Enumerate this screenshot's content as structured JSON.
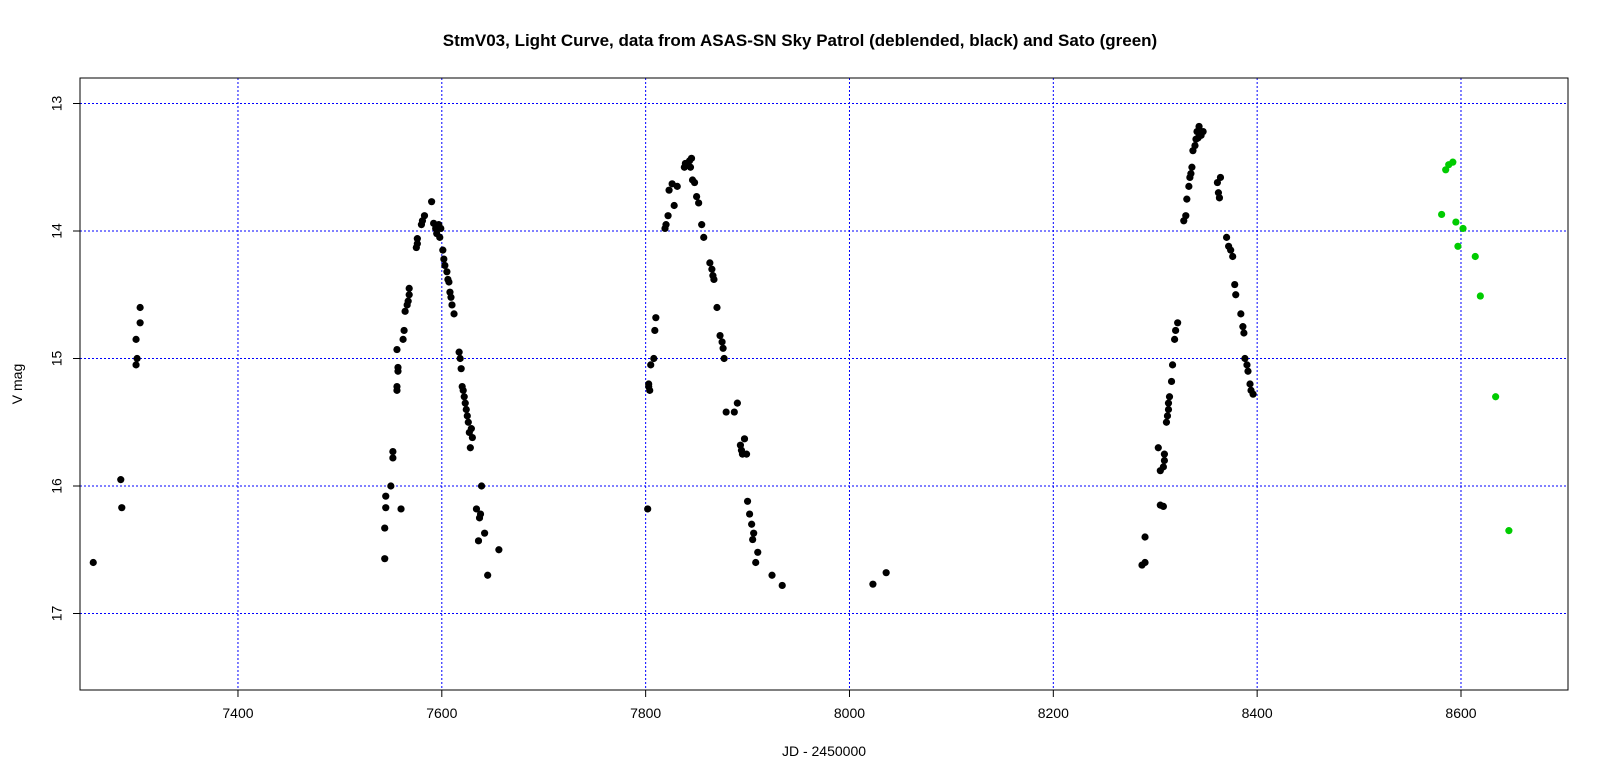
{
  "chart_data": {
    "type": "scatter",
    "title": "StmV03, Light Curve, data from ASAS-SN Sky Patrol (deblended, black) and Sato (green)",
    "xlabel": "JD - 2450000",
    "ylabel": "V mag",
    "xlim": [
      7245,
      8705
    ],
    "ylim": [
      17.6,
      12.8
    ],
    "y_inverted": true,
    "x_ticks": [
      7400,
      7600,
      7800,
      8000,
      8200,
      8400,
      8600
    ],
    "y_ticks": [
      13,
      14,
      15,
      16,
      17
    ],
    "grid": true,
    "series": [
      {
        "colorname": "black",
        "color": "#000000",
        "points": [
          [
            7258,
            16.6
          ],
          [
            7285,
            15.95
          ],
          [
            7286,
            16.17
          ],
          [
            7300,
            15.05
          ],
          [
            7301,
            15.0
          ],
          [
            7300,
            14.85
          ],
          [
            7304,
            14.72
          ],
          [
            7304,
            14.6
          ],
          [
            7544,
            16.57
          ],
          [
            7544,
            16.33
          ],
          [
            7545,
            16.17
          ],
          [
            7545,
            16.08
          ],
          [
            7550,
            16.0
          ],
          [
            7552,
            15.78
          ],
          [
            7552,
            15.73
          ],
          [
            7556,
            15.25
          ],
          [
            7556,
            15.22
          ],
          [
            7557,
            15.1
          ],
          [
            7557,
            15.07
          ],
          [
            7556,
            14.93
          ],
          [
            7560,
            16.18
          ],
          [
            7562,
            14.85
          ],
          [
            7563,
            14.78
          ],
          [
            7564,
            14.63
          ],
          [
            7566,
            14.58
          ],
          [
            7567,
            14.55
          ],
          [
            7568,
            14.5
          ],
          [
            7568,
            14.45
          ],
          [
            7575,
            14.13
          ],
          [
            7576,
            14.1
          ],
          [
            7576,
            14.06
          ],
          [
            7580,
            13.95
          ],
          [
            7581,
            13.92
          ],
          [
            7583,
            13.88
          ],
          [
            7590,
            13.77
          ],
          [
            7592,
            13.94
          ],
          [
            7594,
            13.98
          ],
          [
            7595,
            14.02
          ],
          [
            7597,
            13.95
          ],
          [
            7598,
            14.05
          ],
          [
            7599,
            13.98
          ],
          [
            7601,
            14.15
          ],
          [
            7602,
            14.22
          ],
          [
            7603,
            14.27
          ],
          [
            7605,
            14.32
          ],
          [
            7606,
            14.38
          ],
          [
            7607,
            14.4
          ],
          [
            7608,
            14.48
          ],
          [
            7609,
            14.52
          ],
          [
            7610,
            14.58
          ],
          [
            7612,
            14.65
          ],
          [
            7617,
            14.95
          ],
          [
            7618,
            15.0
          ],
          [
            7619,
            15.08
          ],
          [
            7620,
            15.22
          ],
          [
            7621,
            15.25
          ],
          [
            7622,
            15.3
          ],
          [
            7623,
            15.35
          ],
          [
            7624,
            15.4
          ],
          [
            7625,
            15.45
          ],
          [
            7626,
            15.5
          ],
          [
            7627,
            15.58
          ],
          [
            7628,
            15.7
          ],
          [
            7629,
            15.55
          ],
          [
            7630,
            15.62
          ],
          [
            7634,
            16.18
          ],
          [
            7636,
            16.43
          ],
          [
            7637,
            16.25
          ],
          [
            7638,
            16.22
          ],
          [
            7639,
            16.0
          ],
          [
            7642,
            16.37
          ],
          [
            7645,
            16.7
          ],
          [
            7656,
            16.5
          ]
        ]
      },
      {
        "colorname": "black2",
        "color": "#000000",
        "points": [
          [
            7802,
            16.18
          ],
          [
            7803,
            15.2
          ],
          [
            7803,
            15.22
          ],
          [
            7804,
            15.25
          ],
          [
            7805,
            15.05
          ],
          [
            7808,
            15.0
          ],
          [
            7809,
            14.78
          ],
          [
            7810,
            14.68
          ],
          [
            7819,
            13.98
          ],
          [
            7820,
            13.95
          ],
          [
            7822,
            13.88
          ],
          [
            7823,
            13.68
          ],
          [
            7826,
            13.63
          ],
          [
            7828,
            13.8
          ],
          [
            7831,
            13.65
          ],
          [
            7838,
            13.5
          ],
          [
            7839,
            13.47
          ],
          [
            7843,
            13.45
          ],
          [
            7844,
            13.5
          ],
          [
            7845,
            13.43
          ],
          [
            7846,
            13.6
          ],
          [
            7848,
            13.62
          ],
          [
            7850,
            13.73
          ],
          [
            7852,
            13.78
          ],
          [
            7855,
            13.95
          ],
          [
            7857,
            14.05
          ],
          [
            7863,
            14.25
          ],
          [
            7865,
            14.3
          ],
          [
            7866,
            14.35
          ],
          [
            7867,
            14.38
          ],
          [
            7870,
            14.6
          ],
          [
            7873,
            14.82
          ],
          [
            7875,
            14.87
          ],
          [
            7876,
            14.92
          ],
          [
            7877,
            15.0
          ],
          [
            7879,
            15.42
          ],
          [
            7887,
            15.42
          ],
          [
            7890,
            15.35
          ],
          [
            7893,
            15.68
          ],
          [
            7894,
            15.72
          ],
          [
            7895,
            15.75
          ],
          [
            7897,
            15.63
          ],
          [
            7899,
            15.75
          ],
          [
            7900,
            16.12
          ],
          [
            7902,
            16.22
          ],
          [
            7904,
            16.3
          ],
          [
            7905,
            16.42
          ],
          [
            7906,
            16.37
          ],
          [
            7908,
            16.6
          ],
          [
            7910,
            16.52
          ],
          [
            7924,
            16.7
          ],
          [
            7934,
            16.78
          ],
          [
            8023,
            16.77
          ],
          [
            8036,
            16.68
          ]
        ]
      },
      {
        "colorname": "black3",
        "color": "#000000",
        "points": [
          [
            8287,
            16.62
          ],
          [
            8290,
            16.6
          ],
          [
            8290,
            16.4
          ],
          [
            8303,
            15.7
          ],
          [
            8305,
            15.88
          ],
          [
            8305,
            16.15
          ],
          [
            8308,
            16.16
          ],
          [
            8308,
            15.85
          ],
          [
            8309,
            15.8
          ],
          [
            8309,
            15.75
          ],
          [
            8311,
            15.5
          ],
          [
            8312,
            15.45
          ],
          [
            8313,
            15.4
          ],
          [
            8313,
            15.35
          ],
          [
            8314,
            15.3
          ],
          [
            8316,
            15.18
          ],
          [
            8317,
            15.05
          ],
          [
            8319,
            14.85
          ],
          [
            8320,
            14.78
          ],
          [
            8322,
            14.72
          ],
          [
            8328,
            13.92
          ],
          [
            8330,
            13.88
          ],
          [
            8331,
            13.75
          ],
          [
            8333,
            13.65
          ],
          [
            8334,
            13.58
          ],
          [
            8335,
            13.55
          ],
          [
            8336,
            13.5
          ],
          [
            8337,
            13.37
          ],
          [
            8339,
            13.33
          ],
          [
            8340,
            13.28
          ],
          [
            8341,
            13.22
          ],
          [
            8342,
            13.27
          ],
          [
            8343,
            13.18
          ],
          [
            8345,
            13.25
          ],
          [
            8347,
            13.22
          ],
          [
            8361,
            13.62
          ],
          [
            8362,
            13.7
          ],
          [
            8363,
            13.74
          ],
          [
            8364,
            13.58
          ],
          [
            8370,
            14.05
          ],
          [
            8372,
            14.12
          ],
          [
            8374,
            14.15
          ],
          [
            8376,
            14.2
          ],
          [
            8378,
            14.42
          ],
          [
            8379,
            14.5
          ],
          [
            8384,
            14.65
          ],
          [
            8386,
            14.75
          ],
          [
            8387,
            14.8
          ],
          [
            8388,
            15.0
          ],
          [
            8390,
            15.05
          ],
          [
            8391,
            15.1
          ],
          [
            8393,
            15.2
          ],
          [
            8394,
            15.25
          ],
          [
            8396,
            15.28
          ]
        ]
      },
      {
        "colorname": "green",
        "color": "#00cc00",
        "points": [
          [
            8581,
            13.87
          ],
          [
            8585,
            13.52
          ],
          [
            8588,
            13.48
          ],
          [
            8592,
            13.46
          ],
          [
            8595,
            13.93
          ],
          [
            8597,
            14.12
          ],
          [
            8602,
            13.98
          ],
          [
            8614,
            14.2
          ],
          [
            8619,
            14.51
          ],
          [
            8634,
            15.3
          ],
          [
            8647,
            16.35
          ]
        ]
      }
    ]
  }
}
